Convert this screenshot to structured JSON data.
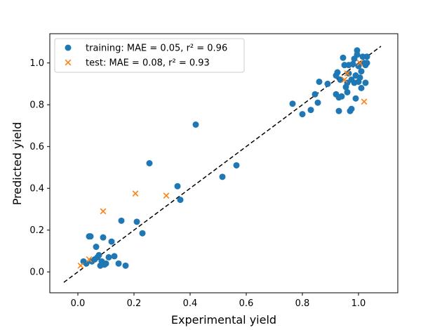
{
  "chart_data": {
    "type": "scatter",
    "xlabel": "Experimental yield",
    "ylabel": "Predicted yield",
    "xlim": [
      -0.1,
      1.14
    ],
    "ylim": [
      -0.1,
      1.14
    ],
    "x_ticks": [
      "0.0",
      "0.2",
      "0.4",
      "0.6",
      "0.8",
      "1.0"
    ],
    "y_ticks": [
      "0.0",
      "0.2",
      "0.4",
      "0.6",
      "0.8",
      "1.0"
    ],
    "legend_position": "top-left",
    "grid": false,
    "reference_line": {
      "style": "dashed",
      "color": "#000000",
      "from": [
        -0.05,
        -0.05
      ],
      "to": [
        1.08,
        1.08
      ]
    },
    "series": [
      {
        "name": "training:  MAE = 0.05, r² = 0.96",
        "marker": "circle",
        "color": "#1f77b4",
        "points": [
          [
            0.02,
            0.05
          ],
          [
            0.03,
            0.04
          ],
          [
            0.04,
            0.17
          ],
          [
            0.045,
            0.17
          ],
          [
            0.05,
            0.05
          ],
          [
            0.06,
            0.06
          ],
          [
            0.065,
            0.12
          ],
          [
            0.07,
            0.07
          ],
          [
            0.075,
            0.08
          ],
          [
            0.08,
            0.03
          ],
          [
            0.085,
            0.05
          ],
          [
            0.09,
            0.165
          ],
          [
            0.095,
            0.035
          ],
          [
            0.1,
            0.04
          ],
          [
            0.11,
            0.07
          ],
          [
            0.12,
            0.145
          ],
          [
            0.13,
            0.075
          ],
          [
            0.145,
            0.04
          ],
          [
            0.155,
            0.245
          ],
          [
            0.17,
            0.03
          ],
          [
            0.21,
            0.24
          ],
          [
            0.23,
            0.185
          ],
          [
            0.255,
            0.52
          ],
          [
            0.355,
            0.41
          ],
          [
            0.365,
            0.345
          ],
          [
            0.42,
            0.705
          ],
          [
            0.515,
            0.455
          ],
          [
            0.565,
            0.51
          ],
          [
            0.765,
            0.805
          ],
          [
            0.8,
            0.755
          ],
          [
            0.83,
            0.775
          ],
          [
            0.845,
            0.85
          ],
          [
            0.855,
            0.81
          ],
          [
            0.86,
            0.91
          ],
          [
            0.89,
            0.9
          ],
          [
            0.92,
            0.94
          ],
          [
            0.92,
            0.85
          ],
          [
            0.93,
            0.835
          ],
          [
            0.93,
            0.77
          ],
          [
            0.935,
            0.92
          ],
          [
            0.94,
            0.84
          ],
          [
            0.945,
            1.025
          ],
          [
            0.95,
            0.99
          ],
          [
            0.955,
            0.885
          ],
          [
            0.96,
            0.86
          ],
          [
            0.965,
            0.99
          ],
          [
            0.965,
            0.95
          ],
          [
            0.97,
            0.77
          ],
          [
            0.975,
            0.78
          ],
          [
            0.975,
            0.92
          ],
          [
            0.98,
            0.995
          ],
          [
            0.985,
            0.905
          ],
          [
            0.99,
            0.83
          ],
          [
            0.99,
            0.94
          ],
          [
            0.995,
            1.06
          ],
          [
            0.995,
            1.04
          ],
          [
            1.0,
            0.91
          ],
          [
            1.0,
            0.985
          ],
          [
            1.005,
            0.93
          ],
          [
            1.01,
            0.88
          ],
          [
            1.01,
            0.96
          ],
          [
            1.015,
            1.03
          ],
          [
            1.02,
            1.0
          ],
          [
            1.025,
            0.905
          ],
          [
            1.025,
            0.99
          ],
          [
            1.03,
            1.03
          ],
          [
            1.03,
            1.0
          ],
          [
            0.96,
            0.905
          ],
          [
            0.925,
            0.955
          ],
          [
            0.985,
            1.02
          ]
        ]
      },
      {
        "name": "test:        MAE = 0.08, r² = 0.93",
        "marker": "x",
        "color": "#ff7f0e",
        "points": [
          [
            0.01,
            0.03
          ],
          [
            0.04,
            0.06
          ],
          [
            0.09,
            0.29
          ],
          [
            0.205,
            0.375
          ],
          [
            0.315,
            0.365
          ],
          [
            0.95,
            0.92
          ],
          [
            0.96,
            0.95
          ],
          [
            1.005,
            1.0
          ],
          [
            1.02,
            0.815
          ]
        ]
      }
    ]
  }
}
